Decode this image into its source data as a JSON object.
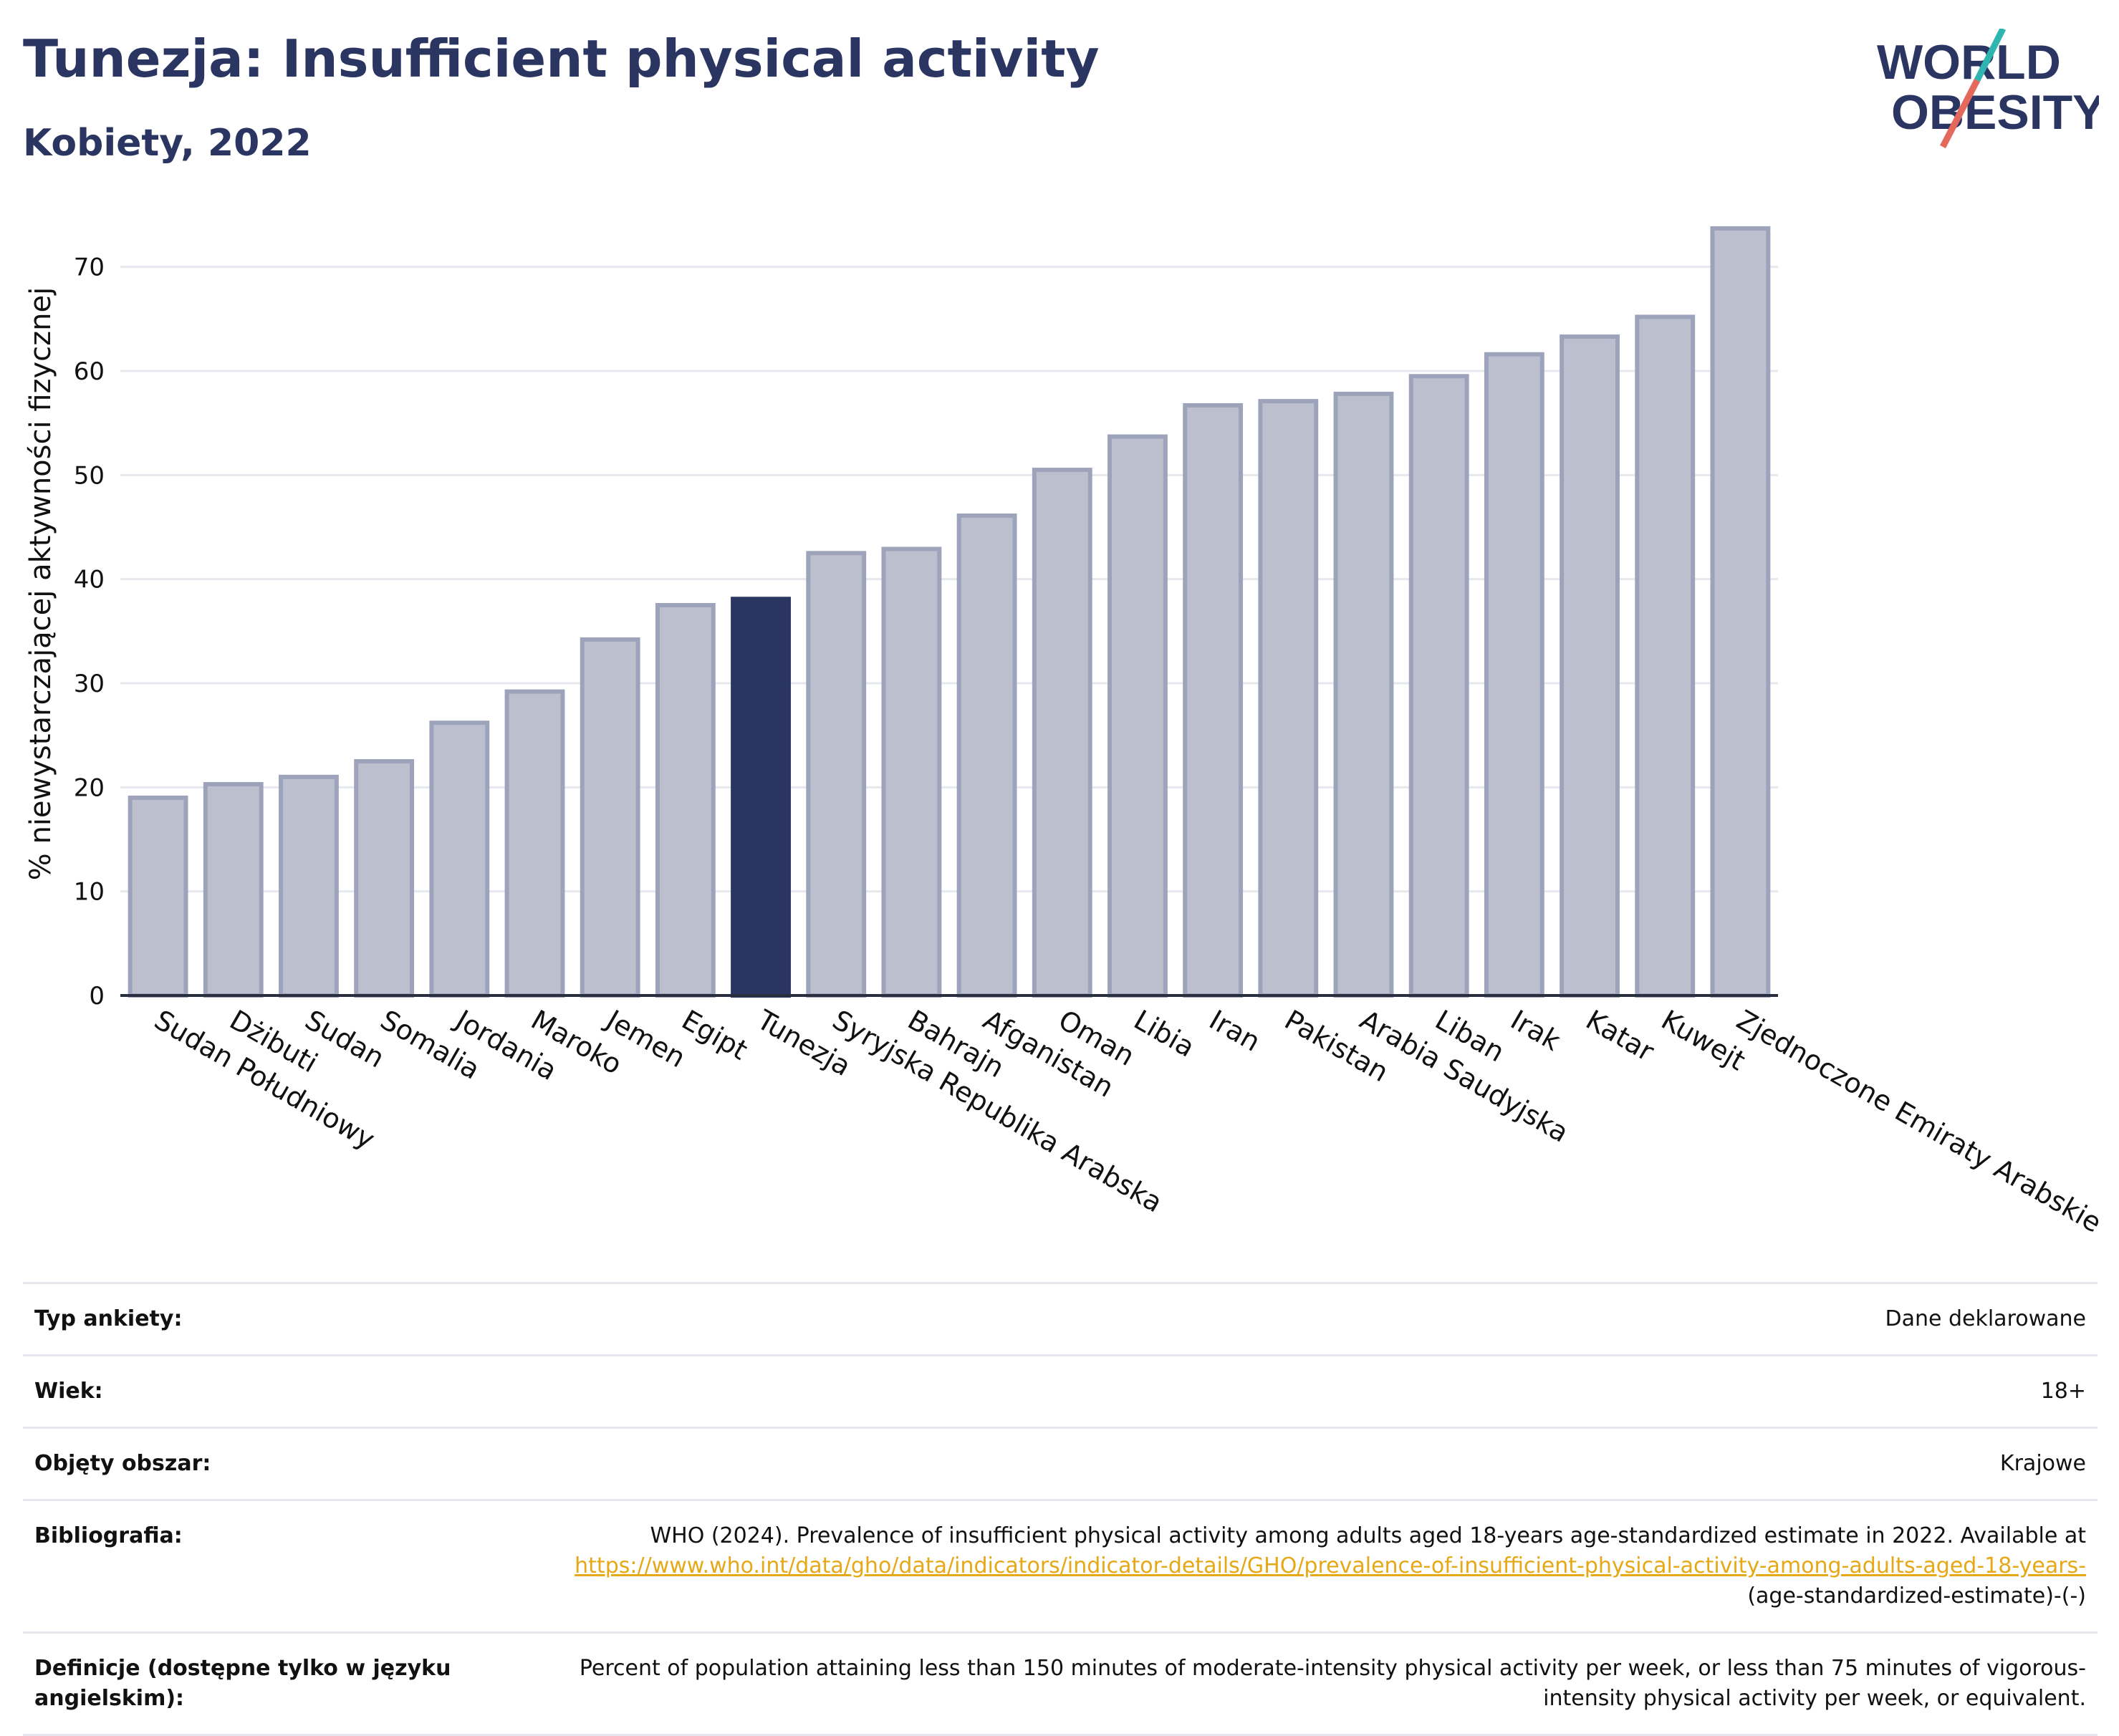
{
  "header": {
    "title": "Tunezja: Insufficient physical activity",
    "subtitle": "Kobiety, 2022"
  },
  "logo": {
    "line1": "WORLD",
    "line2": "OBESITY"
  },
  "colors": {
    "bar": "#bcc0ce",
    "bar_border": "#9da3ba",
    "highlight": "#2a3561",
    "grid": "#e6e8ee",
    "text": "#2a3561",
    "link": "#e6a817"
  },
  "chart_data": {
    "type": "bar",
    "ylabel": "% niewystarczającej aktywności fizycznej",
    "ylim": [
      0,
      75
    ],
    "yticks": [
      0,
      10,
      20,
      30,
      40,
      50,
      60,
      70
    ],
    "grid": true,
    "highlight": "Tunezja",
    "categories": [
      "Sudan Południowy",
      "Dżibuti",
      "Sudan",
      "Somalia",
      "Jordania",
      "Maroko",
      "Jemen",
      "Egipt",
      "Tunezja",
      "Syryjska Republika Arabska",
      "Bahrajn",
      "Afganistan",
      "Oman",
      "Libia",
      "Iran",
      "Pakistan",
      "Arabia Saudyjska",
      "Liban",
      "Irak",
      "Katar",
      "Kuwejt",
      "Zjednoczone Emiraty Arabskie"
    ],
    "values": [
      19.0,
      20.3,
      21.0,
      22.5,
      26.2,
      29.2,
      34.2,
      37.5,
      38.1,
      42.5,
      42.9,
      46.1,
      50.5,
      53.7,
      56.7,
      57.1,
      57.8,
      59.5,
      61.6,
      63.3,
      65.2,
      73.7
    ]
  },
  "meta": {
    "rows": [
      {
        "key": "Typ ankiety:",
        "value": "Dane deklarowane"
      },
      {
        "key": "Wiek:",
        "value": "18+"
      },
      {
        "key": "Objęty obszar:",
        "value": "Krajowe"
      },
      {
        "key": "Bibliografia:",
        "value": "WHO (2024). Prevalence of insufficient physical activity among adults aged 18-years age-standardized estimate in 2022. Available at",
        "link": "https://www.who.int/data/gho/data/indicators/indicator-details/GHO/prevalence-of-insufficient-physical-activity-among-adults-aged-18-years-",
        "tail": "(age-standardized-estimate)-(-)"
      },
      {
        "key": "Definicje (dostępne tylko w języku angielskim):",
        "value": "Percent of population attaining less than 150 minutes of moderate-intensity physical activity per week, or less than 75 minutes of vigorous-intensity physical activity per week, or equivalent."
      }
    ]
  }
}
